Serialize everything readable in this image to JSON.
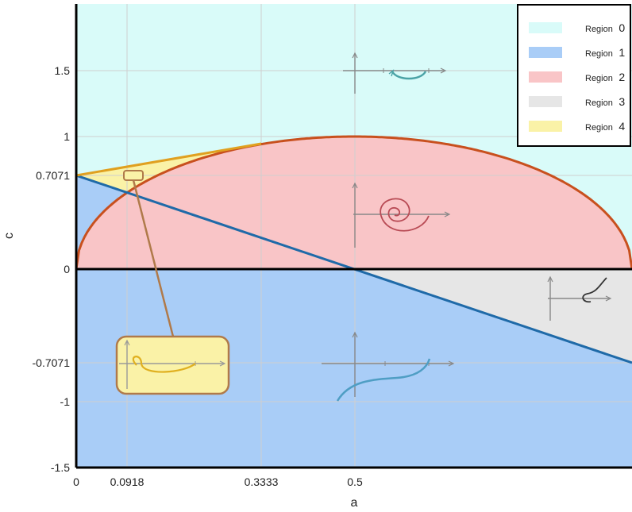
{
  "chart_data": {
    "type": "region-map",
    "xlabel": "a",
    "ylabel": "c",
    "xlim": [
      0,
      1
    ],
    "ylim": [
      -1.5,
      2
    ],
    "grid": true,
    "x_ticks": [
      {
        "value": 0,
        "label": "0"
      },
      {
        "value": 0.0918,
        "label": "0.0918"
      },
      {
        "value": 0.3333,
        "label": "0.3333"
      },
      {
        "value": 0.5,
        "label": "0.5"
      }
    ],
    "y_ticks": [
      {
        "value": 1.5,
        "label": "1.5"
      },
      {
        "value": 1,
        "label": "1"
      },
      {
        "value": 0.7071,
        "label": "0.7071"
      },
      {
        "value": 0,
        "label": "0"
      },
      {
        "value": -0.7071,
        "label": "-0.7071"
      },
      {
        "value": -1,
        "label": "-1"
      },
      {
        "value": -1.5,
        "label": "-1.5"
      }
    ],
    "legend": {
      "placement": "top-right",
      "entries": [
        {
          "word": "Region",
          "num": "0",
          "color": "#d9fbf9"
        },
        {
          "word": "Region",
          "num": "1",
          "color": "#a9cdf7"
        },
        {
          "word": "Region",
          "num": "2",
          "color": "#f9c5c7"
        },
        {
          "word": "Region",
          "num": "3",
          "color": "#e6e6e6"
        },
        {
          "word": "Region",
          "num": "4",
          "color": "#faf2a7"
        }
      ]
    },
    "boundaries": [
      {
        "kind": "ellipse",
        "equation": "c = 2*sqrt(a*(1-a))",
        "color": "#c8501e"
      },
      {
        "kind": "line",
        "from": [
          0,
          0.7071
        ],
        "to": [
          1,
          -0.7071
        ],
        "color": "#1f6aa8"
      },
      {
        "kind": "line",
        "from": [
          0,
          0.7071
        ],
        "to": [
          0.3333,
          0.9428
        ],
        "color": "#e0a020"
      },
      {
        "kind": "line",
        "from": [
          0,
          0
        ],
        "to": [
          1,
          0
        ],
        "color": "#000000"
      }
    ]
  }
}
